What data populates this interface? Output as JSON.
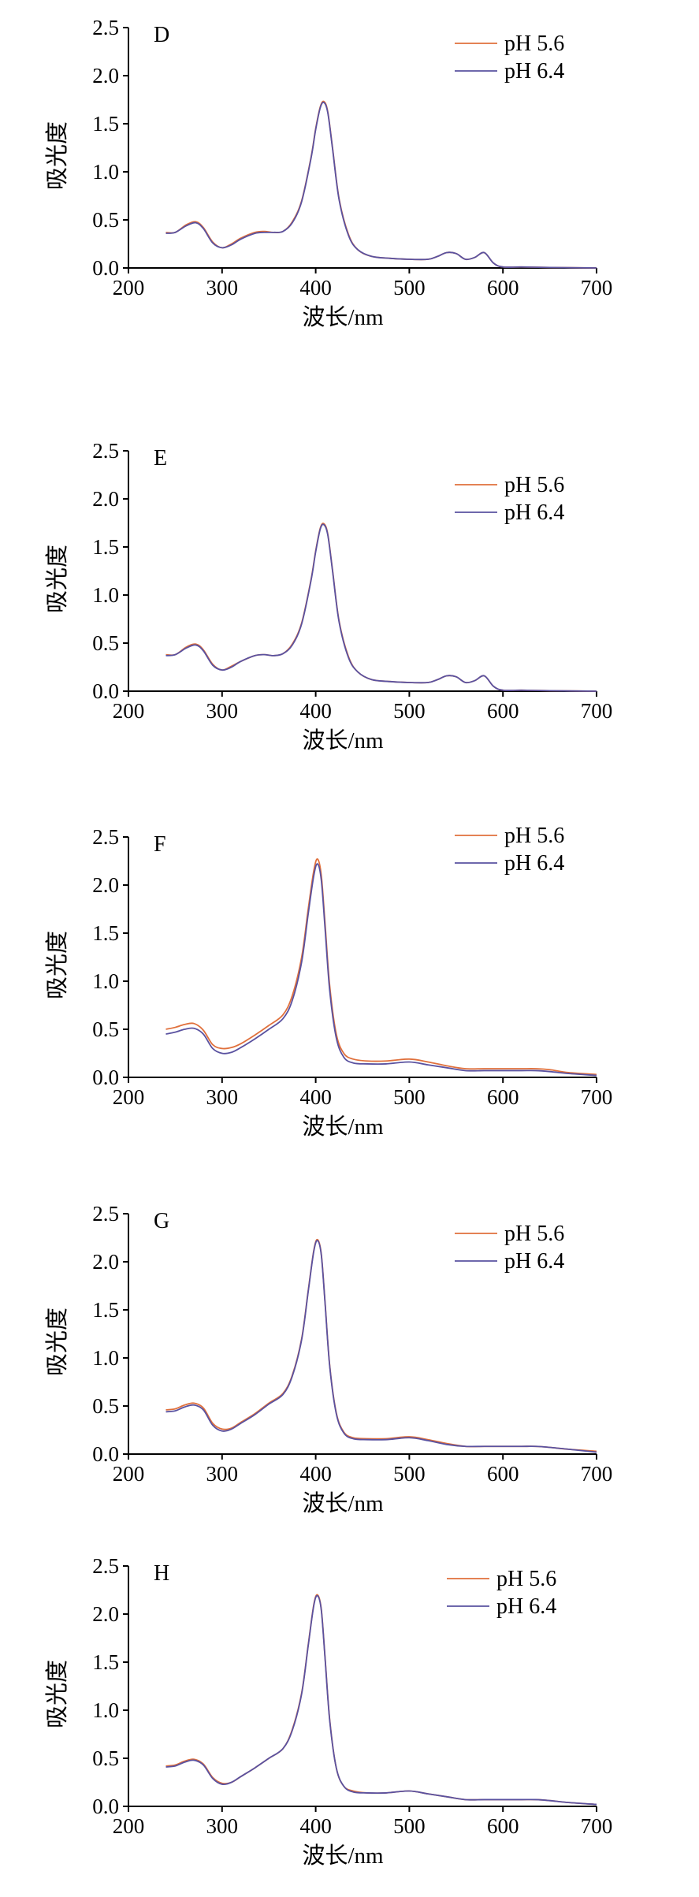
{
  "figure": {
    "colors": {
      "pH 5.6": "#e0703c",
      "pH 6.4": "#5a52a0",
      "axis": "#000000"
    }
  },
  "chart_data": [
    {
      "panel": "D",
      "type": "line",
      "xlabel": "波长/nm",
      "ylabel": "吸光度",
      "xlim": [
        200,
        700
      ],
      "ylim": [
        0,
        2.5
      ],
      "xticks": [
        "200",
        "300",
        "400",
        "500",
        "600",
        "700"
      ],
      "yticks": [
        "0.0",
        "0.5",
        "1.0",
        "1.5",
        "2.0",
        "2.5"
      ],
      "grid": false,
      "legend_position": "top-right",
      "series": [
        {
          "name": "pH 5.6",
          "color": "#e0703c",
          "x": [
            240,
            250,
            262,
            272,
            280,
            290,
            300,
            310,
            320,
            335,
            345,
            355,
            365,
            375,
            385,
            395,
            400,
            405,
            409,
            413,
            418,
            425,
            435,
            445,
            460,
            480,
            500,
            520,
            530,
            540,
            550,
            560,
            570,
            580,
            590,
            600,
            620,
            650,
            700
          ],
          "y": [
            0.37,
            0.37,
            0.45,
            0.48,
            0.42,
            0.27,
            0.21,
            0.25,
            0.31,
            0.37,
            0.38,
            0.37,
            0.38,
            0.48,
            0.7,
            1.15,
            1.45,
            1.68,
            1.73,
            1.62,
            1.25,
            0.72,
            0.35,
            0.19,
            0.12,
            0.1,
            0.09,
            0.09,
            0.12,
            0.16,
            0.15,
            0.09,
            0.11,
            0.16,
            0.05,
            0.01,
            0.01,
            0.005,
            0.0
          ]
        },
        {
          "name": "pH 6.4",
          "color": "#5a52a0",
          "x": [
            240,
            250,
            262,
            272,
            280,
            290,
            300,
            310,
            320,
            335,
            345,
            355,
            365,
            375,
            385,
            395,
            400,
            405,
            409,
            413,
            418,
            425,
            435,
            445,
            460,
            480,
            500,
            520,
            530,
            540,
            550,
            560,
            570,
            580,
            590,
            600,
            620,
            650,
            700
          ],
          "y": [
            0.36,
            0.37,
            0.44,
            0.47,
            0.41,
            0.26,
            0.21,
            0.24,
            0.3,
            0.36,
            0.37,
            0.37,
            0.38,
            0.47,
            0.69,
            1.14,
            1.44,
            1.67,
            1.72,
            1.61,
            1.24,
            0.71,
            0.34,
            0.19,
            0.12,
            0.1,
            0.09,
            0.09,
            0.12,
            0.16,
            0.15,
            0.09,
            0.11,
            0.16,
            0.05,
            0.01,
            0.01,
            0.005,
            0.0
          ]
        }
      ]
    },
    {
      "panel": "E",
      "type": "line",
      "xlabel": "波长/nm",
      "ylabel": "吸光度",
      "xlim": [
        200,
        700
      ],
      "ylim": [
        0,
        2.5
      ],
      "xticks": [
        "200",
        "300",
        "400",
        "500",
        "600",
        "700"
      ],
      "yticks": [
        "0.0",
        "0.5",
        "1.0",
        "1.5",
        "2.0",
        "2.5"
      ],
      "grid": false,
      "legend_position": "top-right",
      "series": [
        {
          "name": "pH 5.6",
          "color": "#e0703c",
          "x": [
            240,
            250,
            262,
            272,
            280,
            290,
            300,
            310,
            320,
            335,
            345,
            355,
            365,
            375,
            385,
            395,
            400,
            405,
            409,
            413,
            418,
            425,
            435,
            445,
            460,
            480,
            500,
            520,
            530,
            540,
            550,
            560,
            570,
            580,
            590,
            600,
            620,
            650,
            700
          ],
          "y": [
            0.38,
            0.38,
            0.46,
            0.49,
            0.43,
            0.28,
            0.22,
            0.26,
            0.31,
            0.37,
            0.38,
            0.37,
            0.39,
            0.49,
            0.71,
            1.16,
            1.46,
            1.7,
            1.74,
            1.63,
            1.26,
            0.73,
            0.36,
            0.2,
            0.12,
            0.1,
            0.09,
            0.09,
            0.12,
            0.16,
            0.15,
            0.09,
            0.11,
            0.16,
            0.05,
            0.01,
            0.01,
            0.005,
            0.0
          ]
        },
        {
          "name": "pH 6.4",
          "color": "#5a52a0",
          "x": [
            240,
            250,
            262,
            272,
            280,
            290,
            300,
            310,
            320,
            335,
            345,
            355,
            365,
            375,
            385,
            395,
            400,
            405,
            409,
            413,
            418,
            425,
            435,
            445,
            460,
            480,
            500,
            520,
            530,
            540,
            550,
            560,
            570,
            580,
            590,
            600,
            620,
            650,
            700
          ],
          "y": [
            0.37,
            0.38,
            0.45,
            0.48,
            0.42,
            0.27,
            0.22,
            0.25,
            0.31,
            0.37,
            0.38,
            0.37,
            0.39,
            0.48,
            0.7,
            1.15,
            1.45,
            1.69,
            1.73,
            1.62,
            1.25,
            0.72,
            0.35,
            0.2,
            0.12,
            0.1,
            0.09,
            0.09,
            0.12,
            0.16,
            0.15,
            0.09,
            0.11,
            0.16,
            0.05,
            0.01,
            0.01,
            0.005,
            0.0
          ]
        }
      ]
    },
    {
      "panel": "F",
      "type": "line",
      "xlabel": "波长/nm",
      "ylabel": "吸光度",
      "xlim": [
        200,
        700
      ],
      "ylim": [
        0,
        2.5
      ],
      "xticks": [
        "200",
        "300",
        "400",
        "500",
        "600",
        "700"
      ],
      "yticks": [
        "0.0",
        "0.5",
        "1.0",
        "1.5",
        "2.0",
        "2.5"
      ],
      "grid": false,
      "legend_position": "top-right",
      "series": [
        {
          "name": "pH 5.6",
          "color": "#e0703c",
          "x": [
            240,
            250,
            260,
            270,
            280,
            290,
            300,
            310,
            320,
            335,
            350,
            365,
            375,
            385,
            392,
            398,
            402,
            406,
            410,
            415,
            422,
            430,
            440,
            455,
            475,
            500,
            520,
            540,
            560,
            580,
            600,
            620,
            635,
            650,
            670,
            700
          ],
          "y": [
            0.5,
            0.52,
            0.55,
            0.56,
            0.49,
            0.34,
            0.3,
            0.31,
            0.35,
            0.44,
            0.54,
            0.65,
            0.85,
            1.25,
            1.75,
            2.15,
            2.27,
            2.1,
            1.6,
            0.95,
            0.45,
            0.25,
            0.19,
            0.17,
            0.17,
            0.19,
            0.16,
            0.12,
            0.09,
            0.09,
            0.09,
            0.09,
            0.09,
            0.08,
            0.05,
            0.03
          ]
        },
        {
          "name": "pH 6.4",
          "color": "#5a52a0",
          "x": [
            240,
            250,
            260,
            270,
            280,
            290,
            300,
            310,
            320,
            335,
            350,
            365,
            375,
            385,
            392,
            398,
            402,
            406,
            410,
            415,
            422,
            430,
            440,
            455,
            475,
            500,
            520,
            540,
            560,
            580,
            600,
            620,
            635,
            650,
            670,
            700
          ],
          "y": [
            0.45,
            0.47,
            0.5,
            0.51,
            0.45,
            0.3,
            0.25,
            0.26,
            0.31,
            0.4,
            0.5,
            0.61,
            0.8,
            1.2,
            1.7,
            2.1,
            2.22,
            2.05,
            1.55,
            0.9,
            0.41,
            0.21,
            0.15,
            0.14,
            0.14,
            0.16,
            0.13,
            0.1,
            0.07,
            0.07,
            0.07,
            0.07,
            0.07,
            0.06,
            0.04,
            0.02
          ]
        }
      ]
    },
    {
      "panel": "G",
      "type": "line",
      "xlabel": "波长/nm",
      "ylabel": "吸光度",
      "xlim": [
        200,
        700
      ],
      "ylim": [
        0,
        2.5
      ],
      "xticks": [
        "200",
        "300",
        "400",
        "500",
        "600",
        "700"
      ],
      "yticks": [
        "0.0",
        "0.5",
        "1.0",
        "1.5",
        "2.0",
        "2.5"
      ],
      "grid": false,
      "legend_position": "top-right",
      "series": [
        {
          "name": "pH 5.6",
          "color": "#e0703c",
          "x": [
            240,
            250,
            260,
            270,
            280,
            290,
            300,
            310,
            320,
            335,
            350,
            365,
            375,
            385,
            392,
            398,
            402,
            406,
            410,
            415,
            422,
            430,
            440,
            455,
            475,
            500,
            520,
            540,
            560,
            580,
            600,
            620,
            635,
            650,
            670,
            700
          ],
          "y": [
            0.46,
            0.47,
            0.51,
            0.53,
            0.48,
            0.32,
            0.26,
            0.27,
            0.33,
            0.42,
            0.53,
            0.63,
            0.82,
            1.2,
            1.7,
            2.12,
            2.23,
            2.08,
            1.58,
            0.92,
            0.43,
            0.23,
            0.17,
            0.16,
            0.16,
            0.18,
            0.15,
            0.11,
            0.08,
            0.08,
            0.08,
            0.08,
            0.08,
            0.07,
            0.05,
            0.03
          ]
        },
        {
          "name": "pH 6.4",
          "color": "#5a52a0",
          "x": [
            240,
            250,
            260,
            270,
            280,
            290,
            300,
            310,
            320,
            335,
            350,
            365,
            375,
            385,
            392,
            398,
            402,
            406,
            410,
            415,
            422,
            430,
            440,
            455,
            475,
            500,
            520,
            540,
            560,
            580,
            600,
            620,
            635,
            650,
            670,
            700
          ],
          "y": [
            0.44,
            0.45,
            0.49,
            0.51,
            0.46,
            0.3,
            0.24,
            0.26,
            0.32,
            0.41,
            0.52,
            0.62,
            0.81,
            1.19,
            1.69,
            2.11,
            2.22,
            2.07,
            1.57,
            0.91,
            0.42,
            0.22,
            0.16,
            0.15,
            0.15,
            0.17,
            0.14,
            0.1,
            0.08,
            0.08,
            0.08,
            0.08,
            0.08,
            0.07,
            0.05,
            0.02
          ]
        }
      ]
    },
    {
      "panel": "H",
      "type": "line",
      "xlabel": "波长/nm",
      "ylabel": "吸光度",
      "xlim": [
        200,
        700
      ],
      "ylim": [
        0,
        2.5
      ],
      "xticks": [
        "200",
        "300",
        "400",
        "500",
        "600",
        "700"
      ],
      "yticks": [
        "0.0",
        "0.5",
        "1.0",
        "1.5",
        "2.0",
        "2.5"
      ],
      "grid": false,
      "legend_position": "top-right",
      "series": [
        {
          "name": "pH 5.6",
          "color": "#e0703c",
          "x": [
            240,
            250,
            260,
            270,
            280,
            290,
            300,
            310,
            320,
            335,
            350,
            365,
            375,
            385,
            392,
            398,
            402,
            406,
            410,
            415,
            422,
            430,
            440,
            455,
            475,
            500,
            520,
            540,
            560,
            580,
            600,
            620,
            635,
            650,
            670,
            700
          ],
          "y": [
            0.42,
            0.43,
            0.47,
            0.49,
            0.44,
            0.3,
            0.24,
            0.25,
            0.31,
            0.4,
            0.5,
            0.6,
            0.8,
            1.18,
            1.68,
            2.1,
            2.2,
            2.05,
            1.55,
            0.9,
            0.4,
            0.21,
            0.16,
            0.14,
            0.14,
            0.16,
            0.13,
            0.1,
            0.07,
            0.07,
            0.07,
            0.07,
            0.07,
            0.06,
            0.04,
            0.02
          ]
        },
        {
          "name": "pH 6.4",
          "color": "#5a52a0",
          "x": [
            240,
            250,
            260,
            270,
            280,
            290,
            300,
            310,
            320,
            335,
            350,
            365,
            375,
            385,
            392,
            398,
            402,
            406,
            410,
            415,
            422,
            430,
            440,
            455,
            475,
            500,
            520,
            540,
            560,
            580,
            600,
            620,
            635,
            650,
            670,
            700
          ],
          "y": [
            0.41,
            0.42,
            0.46,
            0.48,
            0.43,
            0.29,
            0.23,
            0.25,
            0.31,
            0.4,
            0.5,
            0.6,
            0.79,
            1.17,
            1.67,
            2.09,
            2.19,
            2.04,
            1.54,
            0.89,
            0.4,
            0.21,
            0.15,
            0.14,
            0.14,
            0.16,
            0.13,
            0.1,
            0.07,
            0.07,
            0.07,
            0.07,
            0.07,
            0.06,
            0.04,
            0.02
          ]
        }
      ]
    }
  ]
}
